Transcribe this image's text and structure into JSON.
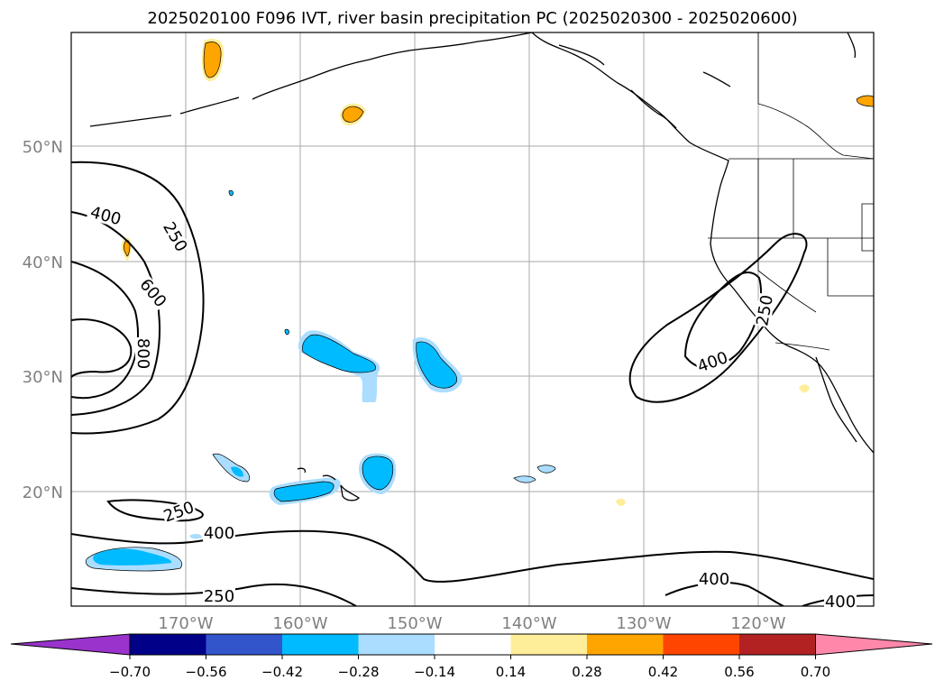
{
  "title": "2025020100 F096 IVT, river basin precipitation PC (2025020300 - 2025020600)",
  "lon_labels": [
    "170°W",
    "160°W",
    "150°W",
    "140°W",
    "130°W",
    "120°W"
  ],
  "lat_labels": [
    "50°N",
    "40°N",
    "30°N",
    "20°N"
  ],
  "contour_labels": [
    "400",
    "250",
    "600",
    "800",
    "250",
    "400",
    "250",
    "250",
    "400",
    "400",
    "400"
  ],
  "colorbar": {
    "colors": [
      "#9933cc",
      "#000088",
      "#3355cc",
      "#00bbff",
      "#aaddff",
      "#ffffff",
      "#ffee99",
      "#ffa500",
      "#ff4500",
      "#b22222",
      "#ff88aa"
    ],
    "tick_labels": [
      "−0.70",
      "−0.56",
      "−0.42",
      "−0.28",
      "−0.14",
      "0.14",
      "0.28",
      "0.42",
      "0.56",
      "0.70"
    ]
  },
  "colors": {
    "negative_fill": "#00bbff",
    "negative_light": "#aaddff",
    "positive_fill": "#ffa500",
    "positive_light": "#ffee99",
    "grid": "#aaaaaa",
    "axis_label": "#808080"
  }
}
